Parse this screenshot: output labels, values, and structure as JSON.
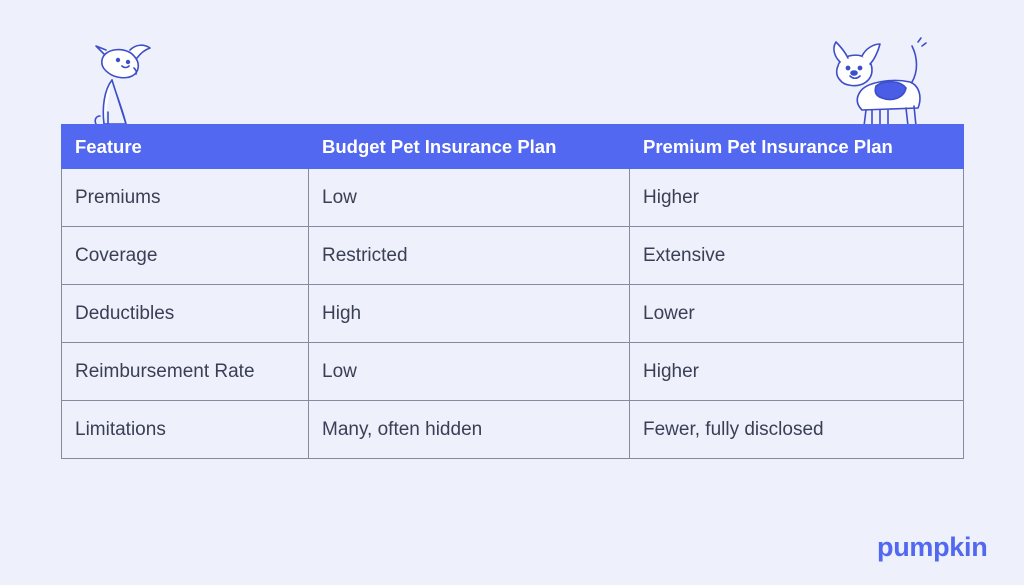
{
  "table": {
    "headers": [
      "Feature",
      "Budget Pet Insurance Plan",
      "Premium Pet Insurance Plan"
    ],
    "rows": [
      [
        "Premiums",
        "Low",
        "Higher"
      ],
      [
        "Coverage",
        "Restricted",
        "Extensive"
      ],
      [
        "Deductibles",
        "High",
        "Lower"
      ],
      [
        "Reimbursement Rate",
        "Low",
        "Higher"
      ],
      [
        "Limitations",
        "Many, often hidden",
        "Fewer, fully disclosed"
      ]
    ]
  },
  "logo": {
    "text": "pumpkin"
  },
  "illustrations": {
    "left": "sitting-dog-illustration",
    "right": "walking-dog-illustration"
  },
  "colors": {
    "background": "#eef0fc",
    "accent": "#5268f1",
    "text": "#3a3f55",
    "border": "#858a9e"
  }
}
